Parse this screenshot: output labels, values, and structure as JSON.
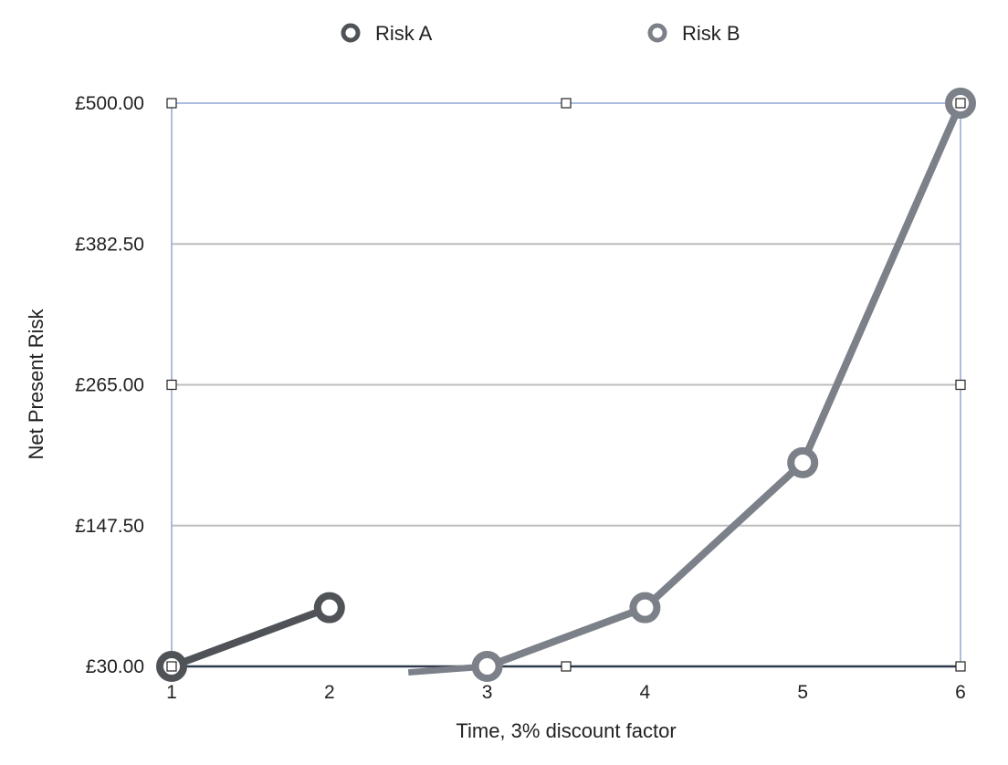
{
  "chart_data": {
    "type": "line",
    "title": "",
    "xlabel": "Time, 3% discount factor",
    "ylabel": "Net Present Risk",
    "x": [
      1,
      2,
      3,
      4,
      5,
      6
    ],
    "xlim": [
      1,
      6
    ],
    "ylim": [
      30,
      500
    ],
    "yticks": [
      30,
      147.5,
      265,
      382.5,
      500
    ],
    "ytick_labels": [
      "£30.00",
      "£147.50",
      "£265.00",
      "£382.50",
      "£500.00"
    ],
    "grid": true,
    "legend_position": "top",
    "series": [
      {
        "name": "Risk A",
        "color": "#4f5358",
        "points": [
          {
            "x": 1,
            "y": 30
          },
          {
            "x": 2,
            "y": 79
          }
        ]
      },
      {
        "name": "Risk B",
        "color": "#7b8089",
        "points": [
          {
            "x": 3,
            "y": 30
          },
          {
            "x": 4,
            "y": 79
          },
          {
            "x": 5,
            "y": 200
          },
          {
            "x": 6,
            "y": 500
          }
        ],
        "lead_in_from": {
          "x": 2.5,
          "y": 25
        }
      }
    ]
  }
}
